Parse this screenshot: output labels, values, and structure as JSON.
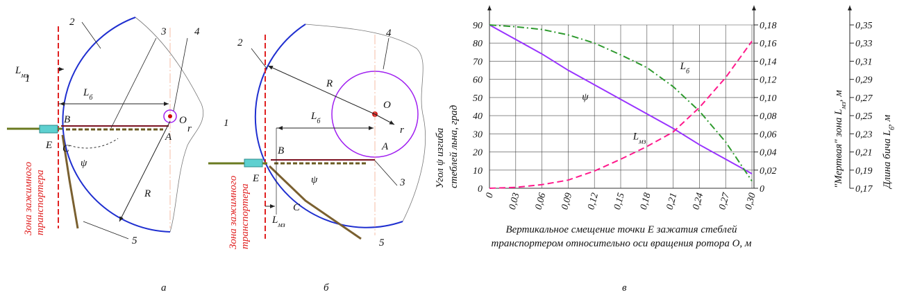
{
  "diagram_a": {
    "numbers": [
      "1",
      "2",
      "3",
      "4",
      "5"
    ],
    "points": [
      "B",
      "E",
      "C",
      "A",
      "O"
    ],
    "r": "r",
    "R": "R",
    "psi": "ψ",
    "L_b": [
      "L",
      "б"
    ],
    "L_mz": [
      "L",
      "мз"
    ],
    "zone": [
      "Зона зажимного",
      "транспортера"
    ]
  },
  "diagram_b": {
    "numbers": [
      "1",
      "2",
      "3",
      "4",
      "5"
    ],
    "points": [
      "B",
      "E",
      "C",
      "A",
      "O"
    ],
    "r": "r",
    "R": "R",
    "psi": "ψ",
    "L_b": [
      "L",
      "б"
    ],
    "L_mz": [
      "L",
      "мз"
    ],
    "zone": [
      "Зона зажимного",
      "транспортера"
    ]
  },
  "captions": [
    "а",
    "б",
    "в"
  ],
  "chart_data": {
    "type": "line",
    "xlabel": [
      "Вертикальное смещение точки E зажатия стеблей",
      "транспортером относительно оси вращения ротора O, м"
    ],
    "ylabel": [
      [
        "Угол ψ изгиба"
      ],
      [
        "стеблей льна, град"
      ]
    ],
    "y2label": [
      [
        "\"Мертвая\" зона L",
        "мз",
        ", м"
      ]
    ],
    "y3label": [
      [
        "Длина бича L",
        "б",
        ", м"
      ]
    ],
    "x": [
      0,
      0.03,
      0.06,
      0.09,
      0.12,
      0.15,
      0.18,
      0.21,
      0.24,
      0.27,
      0.3
    ],
    "xlim": [
      0,
      0.3
    ],
    "xticks": [
      0,
      {
        "value": 0.03,
        "label": "0,03"
      },
      {
        "value": 0.06,
        "label": "0,06"
      },
      {
        "value": 0.09,
        "label": "0,09"
      },
      {
        "value": 0.12,
        "label": "0,12"
      },
      {
        "value": 0.15,
        "label": "0,15"
      },
      {
        "value": 0.18,
        "label": "0,18"
      },
      {
        "value": 0.21,
        "label": "0,21"
      },
      {
        "value": 0.24,
        "label": "0,24"
      },
      {
        "value": 0.27,
        "label": "0,27"
      },
      {
        "value": 0.3,
        "label": "0,30"
      }
    ],
    "ylim": [
      0,
      90
    ],
    "yticks": [
      0,
      10,
      20,
      30,
      40,
      50,
      60,
      70,
      80,
      90
    ],
    "y2lim": [
      0,
      0.18
    ],
    "y2ticks": [
      0,
      {
        "value": 0.02,
        "label": "0,02"
      },
      {
        "value": 0.04,
        "label": "0,04"
      },
      {
        "value": 0.06,
        "label": "0,06"
      },
      {
        "value": 0.08,
        "label": "0,08"
      },
      {
        "value": 0.1,
        "label": "0,10"
      },
      {
        "value": 0.12,
        "label": "0,12"
      },
      {
        "value": 0.14,
        "label": "0,14"
      },
      {
        "value": 0.16,
        "label": "0,16"
      },
      {
        "value": 0.18,
        "label": "0,18"
      }
    ],
    "y3lim": [
      0.17,
      0.35
    ],
    "y3ticks": [
      {
        "value": 0.17,
        "label": "0,17"
      },
      {
        "value": 0.19,
        "label": "0,19"
      },
      {
        "value": 0.21,
        "label": "0,21"
      },
      {
        "value": 0.23,
        "label": "0,23"
      },
      {
        "value": 0.25,
        "label": "0,25"
      },
      {
        "value": 0.27,
        "label": "0,27"
      },
      {
        "value": 0.29,
        "label": "0,29"
      },
      {
        "value": 0.31,
        "label": "0,31"
      },
      {
        "value": 0.33,
        "label": "0,33"
      },
      {
        "value": 0.35,
        "label": "0,35"
      }
    ],
    "grid": true,
    "series": [
      {
        "name": [
          "ψ"
        ],
        "color": "#9933ff",
        "dash": "none",
        "axis": "y",
        "values": [
          90,
          82,
          74,
          65,
          57,
          49,
          41,
          33,
          24,
          16,
          8
        ]
      },
      {
        "name": [
          "L",
          "мз"
        ],
        "color": "#ff1a8c",
        "dash": "9 5",
        "axis": "y2",
        "values": [
          0,
          0.001,
          0.004,
          0.009,
          0.019,
          0.032,
          0.046,
          0.062,
          0.089,
          0.122,
          0.162
        ]
      },
      {
        "name": [
          "L",
          "б"
        ],
        "color": "#2e9a2e",
        "dash": "10 4 2 4",
        "axis": "y3",
        "values": [
          0.35,
          0.348,
          0.345,
          0.339,
          0.33,
          0.317,
          0.303,
          0.282,
          0.255,
          0.221,
          0.178
        ]
      }
    ]
  }
}
